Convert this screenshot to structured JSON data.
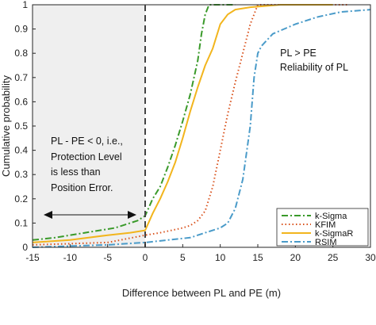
{
  "chart_data": {
    "type": "line",
    "xlabel": "Difference between PL and PE (m)",
    "ylabel": "Cumulative probability",
    "xlim": [
      -15,
      30
    ],
    "ylim": [
      0,
      1
    ],
    "xticks": [
      "-15",
      "-10",
      "-5",
      "0",
      "5",
      "10",
      "15",
      "20",
      "25",
      "30"
    ],
    "yticks": [
      "0",
      "0.1",
      "0.2",
      "0.3",
      "0.4",
      "0.5",
      "0.6",
      "0.7",
      "0.8",
      "0.9",
      "1"
    ],
    "grid": false,
    "legend_position": "bottom-right",
    "annotations": {
      "left_lines": [
        "PL - PE < 0, i.e.,",
        "Protection Level",
        "is less than",
        "Position Error."
      ],
      "right_lines": [
        "PL > PE",
        "Reliability of PL"
      ]
    },
    "series": [
      {
        "name": "k-Sigma",
        "color": "#3a9a2a",
        "dash": "dashdot",
        "points": [
          [
            -15,
            0.03
          ],
          [
            -12,
            0.04
          ],
          [
            -8,
            0.06
          ],
          [
            -4,
            0.08
          ],
          [
            -1,
            0.11
          ],
          [
            0,
            0.13
          ],
          [
            1,
            0.2
          ],
          [
            2,
            0.25
          ],
          [
            3,
            0.33
          ],
          [
            4,
            0.42
          ],
          [
            5,
            0.52
          ],
          [
            6,
            0.63
          ],
          [
            7,
            0.77
          ],
          [
            7.5,
            0.88
          ],
          [
            8,
            0.96
          ],
          [
            8.5,
            1.0
          ],
          [
            12,
            1.0
          ]
        ]
      },
      {
        "name": "KFIM",
        "color": "#d9531e",
        "dash": "dotted",
        "points": [
          [
            -15,
            0.01
          ],
          [
            -5,
            0.02
          ],
          [
            0,
            0.05
          ],
          [
            2,
            0.06
          ],
          [
            3.5,
            0.07
          ],
          [
            5,
            0.08
          ],
          [
            6,
            0.09
          ],
          [
            7,
            0.11
          ],
          [
            8,
            0.15
          ],
          [
            9,
            0.25
          ],
          [
            10,
            0.4
          ],
          [
            11,
            0.55
          ],
          [
            12,
            0.68
          ],
          [
            13,
            0.8
          ],
          [
            14,
            0.92
          ],
          [
            15,
            1.0
          ],
          [
            27,
            1.0
          ]
        ]
      },
      {
        "name": "k-SigmaR",
        "color": "#f2b51d",
        "dash": "solid",
        "points": [
          [
            -15,
            0.02
          ],
          [
            -10,
            0.03
          ],
          [
            -5,
            0.05
          ],
          [
            -2,
            0.06
          ],
          [
            0,
            0.07
          ],
          [
            1,
            0.14
          ],
          [
            2,
            0.2
          ],
          [
            3,
            0.27
          ],
          [
            4,
            0.35
          ],
          [
            5,
            0.45
          ],
          [
            6,
            0.56
          ],
          [
            7,
            0.66
          ],
          [
            8,
            0.75
          ],
          [
            9,
            0.82
          ],
          [
            10,
            0.92
          ],
          [
            11,
            0.96
          ],
          [
            12,
            0.98
          ],
          [
            14,
            0.99
          ],
          [
            18,
            1.0
          ],
          [
            25,
            1.0
          ]
        ]
      },
      {
        "name": "RSIM",
        "color": "#4a9bc9",
        "dash": "dashdot",
        "points": [
          [
            -15,
            0.0
          ],
          [
            -5,
            0.01
          ],
          [
            0,
            0.02
          ],
          [
            3,
            0.03
          ],
          [
            6,
            0.04
          ],
          [
            8,
            0.06
          ],
          [
            10,
            0.08
          ],
          [
            11,
            0.1
          ],
          [
            12,
            0.16
          ],
          [
            13,
            0.28
          ],
          [
            14,
            0.5
          ],
          [
            14.5,
            0.7
          ],
          [
            15,
            0.8
          ],
          [
            15.5,
            0.83
          ],
          [
            17,
            0.88
          ],
          [
            20,
            0.92
          ],
          [
            23,
            0.95
          ],
          [
            26,
            0.97
          ],
          [
            30,
            0.98
          ]
        ]
      }
    ]
  }
}
